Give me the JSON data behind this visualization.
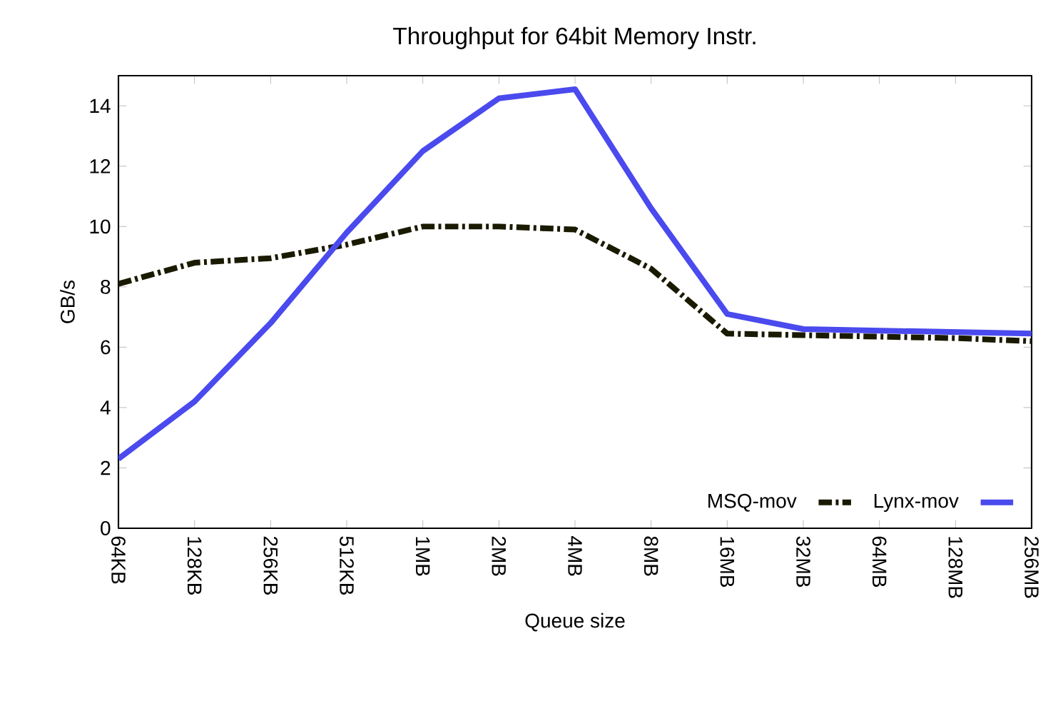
{
  "chart_data": {
    "type": "line",
    "title": "Throughput for 64bit Memory Instr.",
    "xlabel": "Queue size",
    "ylabel": "GB/s",
    "categories": [
      "64KB",
      "128KB",
      "256KB",
      "512KB",
      "1MB",
      "2MB",
      "4MB",
      "8MB",
      "16MB",
      "32MB",
      "64MB",
      "128MB",
      "256MB"
    ],
    "series": [
      {
        "name": "MSQ-mov",
        "color": "#1a1a00",
        "line_style": "dashed",
        "values": [
          8.1,
          8.8,
          8.95,
          9.4,
          10.0,
          10.0,
          9.9,
          8.6,
          6.45,
          6.4,
          6.35,
          6.3,
          6.2
        ]
      },
      {
        "name": "Lynx-mov",
        "color": "#4a4aee",
        "line_style": "solid",
        "values": [
          2.3,
          4.2,
          6.8,
          9.8,
          12.5,
          14.25,
          14.55,
          10.6,
          7.1,
          6.6,
          6.55,
          6.5,
          6.45
        ]
      }
    ],
    "ylim": [
      0,
      15
    ],
    "yticks": [
      0,
      2,
      4,
      6,
      8,
      10,
      12,
      14
    ],
    "grid": false,
    "legend": "bottom right",
    "marker": "none"
  }
}
